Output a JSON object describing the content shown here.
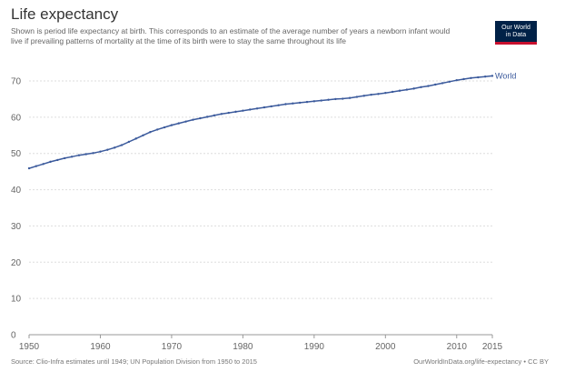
{
  "header": {
    "title": "Life expectancy",
    "subtitle": "Shown is period life expectancy at birth. This corresponds to an estimate of the average number of years a newborn infant would live if prevailing patterns of mortality at the time of its birth were to stay the same throughout its life"
  },
  "logo": {
    "line1": "Our World",
    "line2": "in Data",
    "background_color": "#002147",
    "accent_color": "#c8102e"
  },
  "footer": {
    "source": "Source: Clio-Infra estimates until 1949; UN Population Division from 1950 to 2015",
    "license": "OurWorldInData.org/life-expectancy • CC BY"
  },
  "chart_data": {
    "type": "line",
    "title": "Life expectancy",
    "xlabel": "",
    "ylabel": "",
    "xlim": [
      1950,
      2015
    ],
    "ylim": [
      0,
      70
    ],
    "x_ticks": [
      1950,
      1960,
      1970,
      1980,
      1990,
      2000,
      2010,
      2015
    ],
    "y_ticks": [
      0,
      10,
      20,
      30,
      40,
      50,
      60,
      70
    ],
    "grid": "horizontal",
    "legend": "inline-end-label",
    "series": [
      {
        "name": "World",
        "color": "#3b5a9c",
        "x": [
          1950,
          1951,
          1952,
          1953,
          1954,
          1955,
          1956,
          1957,
          1958,
          1959,
          1960,
          1961,
          1962,
          1963,
          1964,
          1965,
          1966,
          1967,
          1968,
          1969,
          1970,
          1971,
          1972,
          1973,
          1974,
          1975,
          1976,
          1977,
          1978,
          1979,
          1980,
          1981,
          1982,
          1983,
          1984,
          1985,
          1986,
          1987,
          1988,
          1989,
          1990,
          1991,
          1992,
          1993,
          1994,
          1995,
          1996,
          1997,
          1998,
          1999,
          2000,
          2001,
          2002,
          2003,
          2004,
          2005,
          2006,
          2007,
          2008,
          2009,
          2010,
          2011,
          2012,
          2013,
          2014,
          2015
        ],
        "y": [
          45.9,
          46.5,
          47.1,
          47.7,
          48.2,
          48.7,
          49.1,
          49.5,
          49.8,
          50.1,
          50.5,
          51.0,
          51.6,
          52.3,
          53.2,
          54.1,
          55.0,
          55.9,
          56.6,
          57.2,
          57.8,
          58.3,
          58.8,
          59.3,
          59.7,
          60.1,
          60.5,
          60.9,
          61.2,
          61.5,
          61.8,
          62.1,
          62.4,
          62.7,
          63.0,
          63.3,
          63.6,
          63.8,
          64.0,
          64.2,
          64.4,
          64.6,
          64.8,
          65.0,
          65.1,
          65.3,
          65.6,
          65.9,
          66.2,
          66.4,
          66.7,
          67.0,
          67.3,
          67.6,
          67.9,
          68.3,
          68.6,
          69.0,
          69.4,
          69.8,
          70.2,
          70.5,
          70.8,
          71.0,
          71.2,
          71.4
        ]
      }
    ]
  }
}
